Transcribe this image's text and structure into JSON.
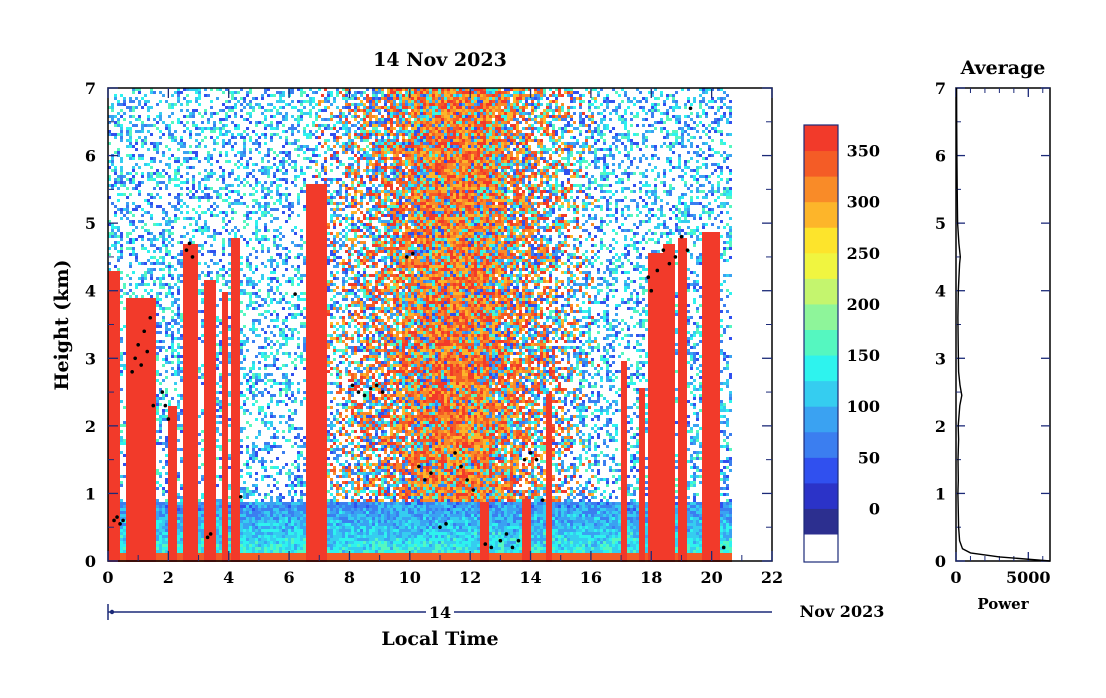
{
  "title": "14 Nov 2023",
  "chart_data": [
    {
      "type": "heatmap",
      "title": "14 Nov 2023",
      "xlabel": "Local Time",
      "ylabel": "Height (km)",
      "xlim": [
        0,
        22
      ],
      "ylim": [
        0,
        7
      ],
      "x_ticks": [
        0,
        2,
        4,
        6,
        8,
        10,
        12,
        14,
        16,
        18,
        20,
        22
      ],
      "y_ticks": [
        0,
        1,
        2,
        3,
        4,
        5,
        6,
        7
      ],
      "date_axis_label": "14",
      "date_axis_suffix": "Nov 2023",
      "data_end_hour": 20.6,
      "colorbar": {
        "ticks": [
          0,
          50,
          100,
          150,
          200,
          250,
          300,
          350
        ],
        "levels": [
          "#2c2f8f",
          "#2b33c8",
          "#3050ef",
          "#3b7ef0",
          "#3aa2f2",
          "#35cdf0",
          "#2ef3ee",
          "#55f7c0",
          "#8ef59a",
          "#c4f56e",
          "#f0f540",
          "#fde42c",
          "#fdb52a",
          "#f98b28",
          "#f45c26",
          "#f23a2a"
        ],
        "below_color": "#ffffff"
      },
      "features": {
        "boundary_layer_top_km": 0.12,
        "dense_layers": [
          {
            "start": 0.0,
            "end": 0.35,
            "top": 4.3
          },
          {
            "start": 0.55,
            "end": 1.5,
            "top": 3.9
          },
          {
            "start": 1.9,
            "end": 2.2,
            "top": 2.3
          },
          {
            "start": 2.4,
            "end": 2.9,
            "top": 4.7
          },
          {
            "start": 3.1,
            "end": 3.5,
            "top": 4.2
          },
          {
            "start": 3.7,
            "end": 3.95,
            "top": 4.0
          },
          {
            "start": 4.05,
            "end": 4.3,
            "top": 4.8
          },
          {
            "start": 6.55,
            "end": 7.2,
            "top": 5.6
          },
          {
            "start": 12.3,
            "end": 12.55,
            "top": 0.9
          },
          {
            "start": 13.7,
            "end": 14.0,
            "top": 0.95
          },
          {
            "start": 14.5,
            "end": 14.65,
            "top": 2.5
          },
          {
            "start": 16.95,
            "end": 17.1,
            "top": 3.0
          },
          {
            "start": 17.5,
            "end": 17.75,
            "top": 2.6
          },
          {
            "start": 17.85,
            "end": 18.3,
            "top": 4.6
          },
          {
            "start": 18.3,
            "end": 18.7,
            "top": 4.7
          },
          {
            "start": 18.8,
            "end": 19.1,
            "top": 4.8
          },
          {
            "start": 19.6,
            "end": 20.2,
            "top": 4.9
          }
        ],
        "cloud_base_points": [
          [
            0.2,
            0.6
          ],
          [
            0.3,
            0.65
          ],
          [
            0.4,
            0.55
          ],
          [
            0.5,
            0.6
          ],
          [
            0.8,
            2.8
          ],
          [
            0.9,
            3.0
          ],
          [
            1.0,
            3.2
          ],
          [
            1.1,
            2.9
          ],
          [
            1.2,
            3.4
          ],
          [
            1.3,
            3.1
          ],
          [
            1.4,
            3.6
          ],
          [
            1.5,
            2.3
          ],
          [
            1.8,
            2.5
          ],
          [
            1.9,
            2.3
          ],
          [
            2.0,
            2.1
          ],
          [
            2.6,
            4.6
          ],
          [
            2.7,
            4.7
          ],
          [
            2.8,
            4.5
          ],
          [
            3.3,
            0.35
          ],
          [
            3.4,
            0.4
          ],
          [
            4.4,
            0.95
          ],
          [
            6.2,
            3.95
          ],
          [
            8.1,
            2.6
          ],
          [
            8.3,
            2.5
          ],
          [
            8.5,
            2.45
          ],
          [
            8.7,
            2.55
          ],
          [
            8.9,
            2.6
          ],
          [
            9.1,
            2.5
          ],
          [
            9.9,
            4.5
          ],
          [
            10.1,
            4.55
          ],
          [
            10.3,
            1.4
          ],
          [
            10.5,
            1.2
          ],
          [
            10.7,
            1.3
          ],
          [
            11.0,
            0.5
          ],
          [
            11.2,
            0.55
          ],
          [
            11.5,
            1.6
          ],
          [
            11.7,
            1.4
          ],
          [
            11.9,
            1.2
          ],
          [
            12.1,
            1.05
          ],
          [
            12.5,
            0.25
          ],
          [
            12.7,
            0.2
          ],
          [
            13.0,
            0.3
          ],
          [
            13.2,
            0.4
          ],
          [
            13.4,
            0.2
          ],
          [
            13.6,
            0.3
          ],
          [
            13.8,
            1.5
          ],
          [
            14.0,
            1.6
          ],
          [
            14.2,
            1.5
          ],
          [
            14.4,
            0.9
          ],
          [
            17.9,
            4.2
          ],
          [
            18.0,
            4.0
          ],
          [
            18.2,
            4.3
          ],
          [
            18.4,
            4.6
          ],
          [
            18.6,
            4.4
          ],
          [
            18.8,
            4.5
          ],
          [
            19.0,
            4.8
          ],
          [
            19.2,
            4.6
          ],
          [
            19.3,
            6.7
          ],
          [
            20.4,
            0.2
          ]
        ]
      }
    },
    {
      "type": "line",
      "title": "Average",
      "xlabel": "Power",
      "ylabel": "",
      "xlim": [
        0,
        6500
      ],
      "ylim": [
        0,
        7
      ],
      "x_ticks": [
        0,
        5000
      ],
      "y_ticks": [
        0,
        1,
        2,
        3,
        4,
        5,
        6,
        7
      ],
      "points": [
        [
          6500,
          0.0
        ],
        [
          3000,
          0.06
        ],
        [
          1000,
          0.12
        ],
        [
          450,
          0.18
        ],
        [
          250,
          0.3
        ],
        [
          180,
          0.5
        ],
        [
          150,
          0.8
        ],
        [
          130,
          1.0
        ],
        [
          160,
          1.2
        ],
        [
          140,
          1.5
        ],
        [
          180,
          1.8
        ],
        [
          150,
          2.0
        ],
        [
          260,
          2.3
        ],
        [
          400,
          2.45
        ],
        [
          280,
          2.6
        ],
        [
          180,
          2.8
        ],
        [
          150,
          3.2
        ],
        [
          130,
          3.6
        ],
        [
          160,
          4.0
        ],
        [
          250,
          4.4
        ],
        [
          300,
          4.5
        ],
        [
          200,
          4.7
        ],
        [
          110,
          5.0
        ],
        [
          80,
          5.5
        ],
        [
          60,
          6.0
        ],
        [
          50,
          6.5
        ],
        [
          40,
          7.0
        ]
      ]
    }
  ]
}
